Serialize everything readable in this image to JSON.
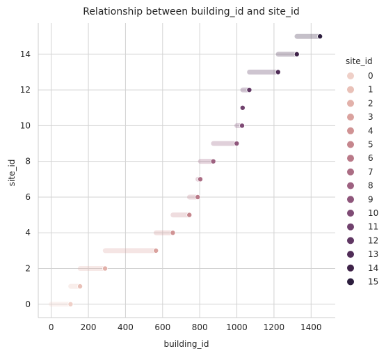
{
  "chart_data": {
    "type": "scatter",
    "title": "Relationship between building_id and site_id",
    "xlabel": "building_id",
    "ylabel": "site_id",
    "xlim": [
      -70,
      1530
    ],
    "ylim": [
      -0.75,
      15.75
    ],
    "xticks": [
      0,
      200,
      400,
      600,
      800,
      1000,
      1200,
      1400
    ],
    "yticks": [
      0,
      2,
      4,
      6,
      8,
      10,
      12,
      14
    ],
    "grid": true,
    "legend": {
      "title": "site_id",
      "placement": "right",
      "entries": [
        "0",
        "1",
        "2",
        "3",
        "4",
        "5",
        "6",
        "7",
        "8",
        "9",
        "10",
        "11",
        "12",
        "13",
        "14",
        "15"
      ]
    },
    "series": [
      {
        "site_id": 0,
        "x_min": 0,
        "x_max": 104,
        "color": "#efd0c8"
      },
      {
        "site_id": 1,
        "x_min": 105,
        "x_max": 155,
        "color": "#e9c1b8"
      },
      {
        "site_id": 2,
        "x_min": 156,
        "x_max": 290,
        "color": "#e2b1aa"
      },
      {
        "site_id": 3,
        "x_min": 291,
        "x_max": 564,
        "color": "#daa29e"
      },
      {
        "site_id": 4,
        "x_min": 565,
        "x_max": 655,
        "color": "#d09394"
      },
      {
        "site_id": 5,
        "x_min": 656,
        "x_max": 744,
        "color": "#c5868d"
      },
      {
        "site_id": 6,
        "x_min": 745,
        "x_max": 789,
        "color": "#b97988"
      },
      {
        "site_id": 7,
        "x_min": 790,
        "x_max": 803,
        "color": "#ab6d84"
      },
      {
        "site_id": 8,
        "x_min": 804,
        "x_max": 873,
        "color": "#9d6180"
      },
      {
        "site_id": 9,
        "x_min": 874,
        "x_max": 999,
        "color": "#8e567b"
      },
      {
        "site_id": 10,
        "x_min": 1000,
        "x_max": 1028,
        "color": "#7f4b75"
      },
      {
        "site_id": 11,
        "x_min": 1029,
        "x_max": 1031,
        "color": "#70416d"
      },
      {
        "site_id": 12,
        "x_min": 1032,
        "x_max": 1067,
        "color": "#603763"
      },
      {
        "site_id": 13,
        "x_min": 1068,
        "x_max": 1222,
        "color": "#502d57"
      },
      {
        "site_id": 14,
        "x_min": 1223,
        "x_max": 1323,
        "color": "#3f2349"
      },
      {
        "site_id": 15,
        "x_min": 1324,
        "x_max": 1448,
        "color": "#2d1e3e"
      }
    ]
  }
}
